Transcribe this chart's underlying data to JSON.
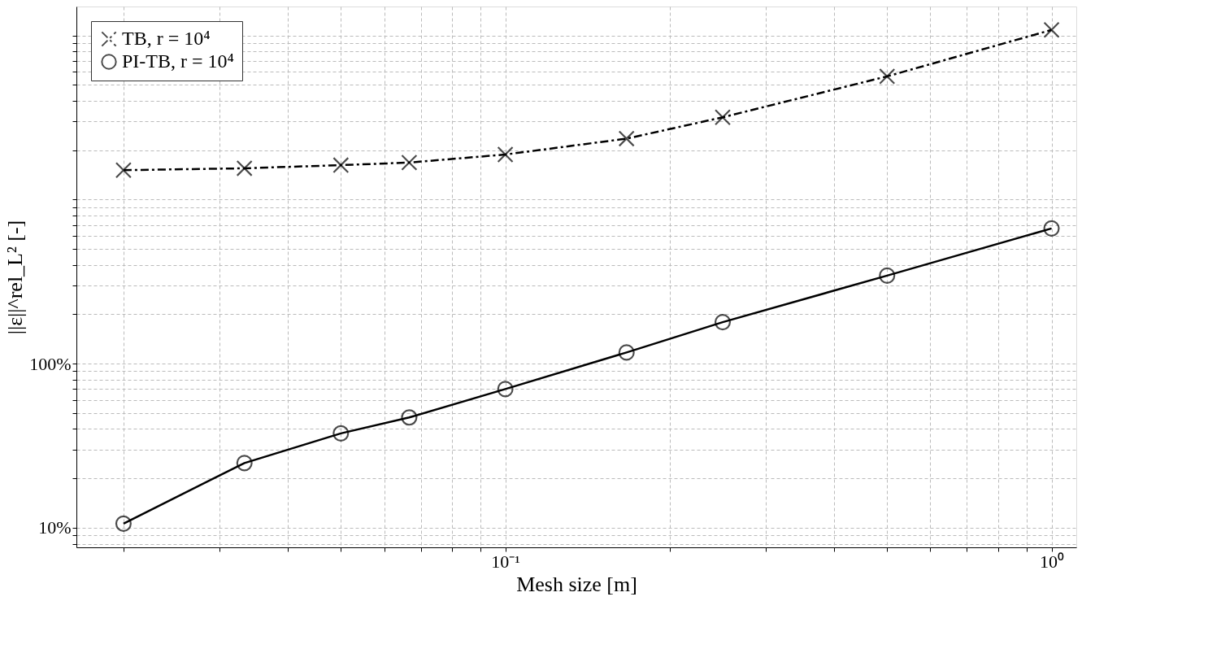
{
  "chart_data": {
    "type": "line",
    "xlabel": "Mesh size [m]",
    "ylabel": "||ε||^rel_L² [-]",
    "x": [
      0.02,
      0.0333,
      0.05,
      0.0667,
      0.1,
      0.1667,
      0.25,
      0.5,
      1
    ],
    "series": [
      {
        "name": "TB, r = 10⁴",
        "color": "#000000",
        "marker": "cross",
        "line_style": "dashed",
        "values": [
          1510,
          1550,
          1620,
          1680,
          1880,
          2350,
          3170,
          5630,
          10800
        ]
      },
      {
        "name": "PI-TB, r = 10⁴",
        "color": "#000000",
        "marker": "circle",
        "line_style": "solid",
        "values": [
          10.6,
          24.8,
          37.6,
          47,
          70,
          117,
          179,
          344,
          667
        ]
      }
    ],
    "log": "xy",
    "xlim": [
      0.0164,
      1.11
    ],
    "ylim": [
      7.6,
      15000
    ],
    "xticks": [
      {
        "value": 0.02,
        "label": null
      },
      {
        "value": 0.03,
        "label": null
      },
      {
        "value": 0.04,
        "label": null
      },
      {
        "value": 0.05,
        "label": null
      },
      {
        "value": 0.06,
        "label": null
      },
      {
        "value": 0.07,
        "label": null
      },
      {
        "value": 0.08,
        "label": null
      },
      {
        "value": 0.09,
        "label": null
      },
      {
        "value": 0.1,
        "label": "10⁻¹"
      },
      {
        "value": 0.2,
        "label": null
      },
      {
        "value": 0.3,
        "label": null
      },
      {
        "value": 0.4,
        "label": null
      },
      {
        "value": 0.5,
        "label": null
      },
      {
        "value": 0.6,
        "label": null
      },
      {
        "value": 0.7,
        "label": null
      },
      {
        "value": 0.8,
        "label": null
      },
      {
        "value": 0.9,
        "label": null
      },
      {
        "value": 1,
        "label": "10⁰"
      }
    ],
    "yticks": [
      {
        "value": 8,
        "label": null
      },
      {
        "value": 9,
        "label": null
      },
      {
        "value": 10,
        "label": "10%"
      },
      {
        "value": 20,
        "label": null
      },
      {
        "value": 30,
        "label": null
      },
      {
        "value": 40,
        "label": null
      },
      {
        "value": 50,
        "label": null
      },
      {
        "value": 60,
        "label": null
      },
      {
        "value": 70,
        "label": null
      },
      {
        "value": 80,
        "label": null
      },
      {
        "value": 90,
        "label": null
      },
      {
        "value": 100,
        "label": "100%"
      },
      {
        "value": 200,
        "label": null
      },
      {
        "value": 300,
        "label": null
      },
      {
        "value": 400,
        "label": null
      },
      {
        "value": 500,
        "label": null
      },
      {
        "value": 600,
        "label": null
      },
      {
        "value": 700,
        "label": null
      },
      {
        "value": 800,
        "label": null
      },
      {
        "value": 900,
        "label": null
      },
      {
        "value": 1000,
        "label": null
      },
      {
        "value": 2000,
        "label": null
      },
      {
        "value": 3000,
        "label": null
      },
      {
        "value": 4000,
        "label": null
      },
      {
        "value": 5000,
        "label": null
      },
      {
        "value": 6000,
        "label": null
      },
      {
        "value": 7000,
        "label": null
      },
      {
        "value": 8000,
        "label": null
      },
      {
        "value": 9000,
        "label": null
      },
      {
        "value": 10000,
        "label": null
      }
    ],
    "grid": true,
    "legend": "top left"
  }
}
